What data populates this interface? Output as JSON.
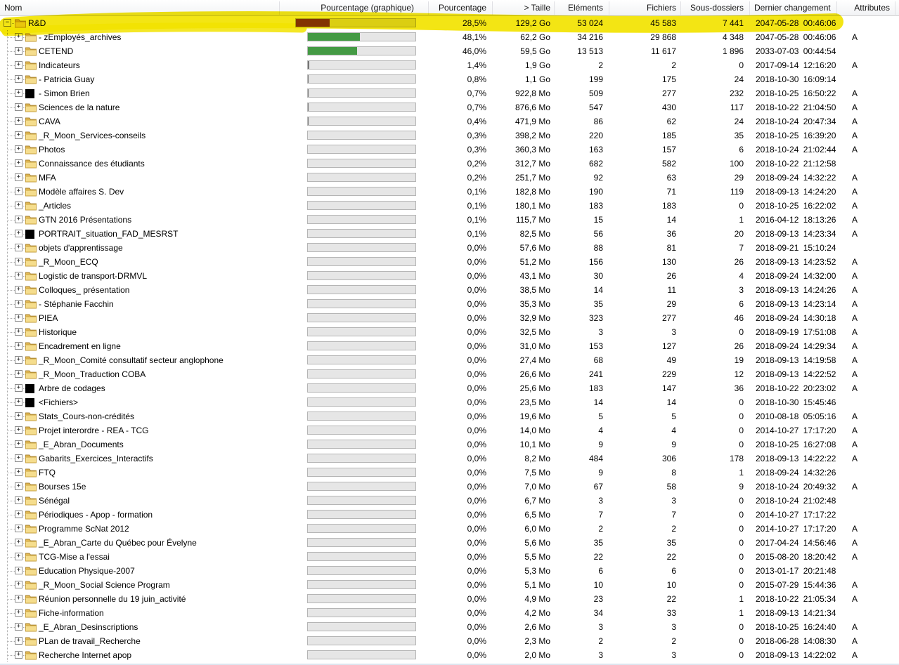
{
  "colors": {
    "highlight": "#f2e300",
    "bar_green": "#449a44",
    "bar_brown": "#8a3a0e",
    "bar_background": "#e6e6e6",
    "bar_border": "#b5b5b5",
    "bar_sliver": "#757575"
  },
  "columns": {
    "nom": "Nom",
    "graph": "Pourcentage (graphique)",
    "pct": "Pourcentage",
    "size": "> Taille",
    "elements": "Eléments",
    "files": "Fichiers",
    "subdirs": "Sous-dossiers",
    "changed": "Dernier changement",
    "attributes": "Attributes"
  },
  "rows": [
    {
      "name": "R&D",
      "level": 0,
      "icon": "folder",
      "expand": "minus",
      "highlight": true,
      "bar": "brown",
      "pct": "28,5%",
      "pct_value": 28.5,
      "size": "129,2 Go",
      "elements": "53 024",
      "files": "45 583",
      "subdirs": "7 441",
      "changed": "2047-05-28 00:46:06",
      "attr": ""
    },
    {
      "name": "- zEmployés_archives",
      "level": 1,
      "icon": "folder",
      "expand": "plus",
      "highlight": false,
      "bar": "green",
      "pct": "48,1%",
      "pct_value": 48.1,
      "size": "62,2 Go",
      "elements": "34 216",
      "files": "29 868",
      "subdirs": "4 348",
      "changed": "2047-05-28 00:46:06",
      "attr": "A"
    },
    {
      "name": "CETEND",
      "level": 1,
      "icon": "folder",
      "expand": "plus",
      "highlight": false,
      "bar": "green",
      "pct": "46,0%",
      "pct_value": 46.0,
      "size": "59,5 Go",
      "elements": "13 513",
      "files": "11 617",
      "subdirs": "1 896",
      "changed": "2033-07-03 00:44:54",
      "attr": ""
    },
    {
      "name": "Indicateurs",
      "level": 1,
      "icon": "folder",
      "expand": "plus",
      "highlight": false,
      "bar": "gray",
      "pct": "1,4%",
      "pct_value": 1.4,
      "size": "1,9 Go",
      "elements": "2",
      "files": "2",
      "subdirs": "0",
      "changed": "2017-09-14 12:16:20",
      "attr": "A"
    },
    {
      "name": "- Patricia Guay",
      "level": 1,
      "icon": "folder",
      "expand": "plus",
      "highlight": false,
      "bar": "gray",
      "pct": "0,8%",
      "pct_value": 0.8,
      "size": "1,1 Go",
      "elements": "199",
      "files": "175",
      "subdirs": "24",
      "changed": "2018-10-30 16:09:14",
      "attr": ""
    },
    {
      "name": "- Simon Brien",
      "level": 1,
      "icon": "black",
      "expand": "plus",
      "highlight": false,
      "bar": "gray",
      "pct": "0,7%",
      "pct_value": 0.7,
      "size": "922,8 Mo",
      "elements": "509",
      "files": "277",
      "subdirs": "232",
      "changed": "2018-10-25 16:50:22",
      "attr": "A"
    },
    {
      "name": "Sciences de la nature",
      "level": 1,
      "icon": "folder",
      "expand": "plus",
      "highlight": false,
      "bar": "gray",
      "pct": "0,7%",
      "pct_value": 0.7,
      "size": "876,6 Mo",
      "elements": "547",
      "files": "430",
      "subdirs": "117",
      "changed": "2018-10-22 21:04:50",
      "attr": "A"
    },
    {
      "name": "CAVA",
      "level": 1,
      "icon": "folder",
      "expand": "plus",
      "highlight": false,
      "bar": "gray",
      "pct": "0,4%",
      "pct_value": 0.4,
      "size": "471,9 Mo",
      "elements": "86",
      "files": "62",
      "subdirs": "24",
      "changed": "2018-10-24 20:47:34",
      "attr": "A"
    },
    {
      "name": "_R_Moon_Services-conseils",
      "level": 1,
      "icon": "folder",
      "expand": "plus",
      "highlight": false,
      "bar": "gray",
      "pct": "0,3%",
      "pct_value": 0.3,
      "size": "398,2 Mo",
      "elements": "220",
      "files": "185",
      "subdirs": "35",
      "changed": "2018-10-25 16:39:20",
      "attr": "A"
    },
    {
      "name": "Photos",
      "level": 1,
      "icon": "folder",
      "expand": "plus",
      "highlight": false,
      "bar": "gray",
      "pct": "0,3%",
      "pct_value": 0.3,
      "size": "360,3 Mo",
      "elements": "163",
      "files": "157",
      "subdirs": "6",
      "changed": "2018-10-24 21:02:44",
      "attr": "A"
    },
    {
      "name": "Connaissance des étudiants",
      "level": 1,
      "icon": "folder",
      "expand": "plus",
      "highlight": false,
      "bar": "gray",
      "pct": "0,2%",
      "pct_value": 0.2,
      "size": "312,7 Mo",
      "elements": "682",
      "files": "582",
      "subdirs": "100",
      "changed": "2018-10-22 21:12:58",
      "attr": ""
    },
    {
      "name": "MFA",
      "level": 1,
      "icon": "folder",
      "expand": "plus",
      "highlight": false,
      "bar": "gray",
      "pct": "0,2%",
      "pct_value": 0.2,
      "size": "251,7 Mo",
      "elements": "92",
      "files": "63",
      "subdirs": "29",
      "changed": "2018-09-24 14:32:22",
      "attr": "A"
    },
    {
      "name": "Modèle affaires S. Dev",
      "level": 1,
      "icon": "folder",
      "expand": "plus",
      "highlight": false,
      "bar": "gray",
      "pct": "0,1%",
      "pct_value": 0.1,
      "size": "182,8 Mo",
      "elements": "190",
      "files": "71",
      "subdirs": "119",
      "changed": "2018-09-13 14:24:20",
      "attr": "A"
    },
    {
      "name": "_Articles",
      "level": 1,
      "icon": "folder",
      "expand": "plus",
      "highlight": false,
      "bar": "gray",
      "pct": "0,1%",
      "pct_value": 0.1,
      "size": "180,1 Mo",
      "elements": "183",
      "files": "183",
      "subdirs": "0",
      "changed": "2018-10-25 16:22:02",
      "attr": "A"
    },
    {
      "name": "GTN 2016 Présentations",
      "level": 1,
      "icon": "folder",
      "expand": "plus",
      "highlight": false,
      "bar": "gray",
      "pct": "0,1%",
      "pct_value": 0.1,
      "size": "115,7 Mo",
      "elements": "15",
      "files": "14",
      "subdirs": "1",
      "changed": "2016-04-12 18:13:26",
      "attr": "A"
    },
    {
      "name": "PORTRAIT_situation_FAD_MESRST",
      "level": 1,
      "icon": "black",
      "expand": "plus",
      "highlight": false,
      "bar": "gray",
      "pct": "0,1%",
      "pct_value": 0.1,
      "size": "82,5 Mo",
      "elements": "56",
      "files": "36",
      "subdirs": "20",
      "changed": "2018-09-13 14:23:34",
      "attr": "A"
    },
    {
      "name": "objets d'apprentissage",
      "level": 1,
      "icon": "folder",
      "expand": "plus",
      "highlight": false,
      "bar": "gray",
      "pct": "0,0%",
      "pct_value": 0,
      "size": "57,6 Mo",
      "elements": "88",
      "files": "81",
      "subdirs": "7",
      "changed": "2018-09-21 15:10:24",
      "attr": ""
    },
    {
      "name": "_R_Moon_ECQ",
      "level": 1,
      "icon": "folder",
      "expand": "plus",
      "highlight": false,
      "bar": "gray",
      "pct": "0,0%",
      "pct_value": 0,
      "size": "51,2 Mo",
      "elements": "156",
      "files": "130",
      "subdirs": "26",
      "changed": "2018-09-13 14:23:52",
      "attr": "A"
    },
    {
      "name": "Logistic de transport-DRMVL",
      "level": 1,
      "icon": "folder",
      "expand": "plus",
      "highlight": false,
      "bar": "gray",
      "pct": "0,0%",
      "pct_value": 0,
      "size": "43,1 Mo",
      "elements": "30",
      "files": "26",
      "subdirs": "4",
      "changed": "2018-09-24 14:32:00",
      "attr": "A"
    },
    {
      "name": "Colloques_ présentation",
      "level": 1,
      "icon": "folder",
      "expand": "plus",
      "highlight": false,
      "bar": "gray",
      "pct": "0,0%",
      "pct_value": 0,
      "size": "38,5 Mo",
      "elements": "14",
      "files": "11",
      "subdirs": "3",
      "changed": "2018-09-13 14:24:26",
      "attr": "A"
    },
    {
      "name": "- Stéphanie Facchin",
      "level": 1,
      "icon": "folder",
      "expand": "plus",
      "highlight": false,
      "bar": "gray",
      "pct": "0,0%",
      "pct_value": 0,
      "size": "35,3 Mo",
      "elements": "35",
      "files": "29",
      "subdirs": "6",
      "changed": "2018-09-13 14:23:14",
      "attr": "A"
    },
    {
      "name": "PIEA",
      "level": 1,
      "icon": "folder",
      "expand": "plus",
      "highlight": false,
      "bar": "gray",
      "pct": "0,0%",
      "pct_value": 0,
      "size": "32,9 Mo",
      "elements": "323",
      "files": "277",
      "subdirs": "46",
      "changed": "2018-09-24 14:30:18",
      "attr": "A"
    },
    {
      "name": "Historique",
      "level": 1,
      "icon": "folder",
      "expand": "plus",
      "highlight": false,
      "bar": "gray",
      "pct": "0,0%",
      "pct_value": 0,
      "size": "32,5 Mo",
      "elements": "3",
      "files": "3",
      "subdirs": "0",
      "changed": "2018-09-19 17:51:08",
      "attr": "A"
    },
    {
      "name": "Encadrement en ligne",
      "level": 1,
      "icon": "folder",
      "expand": "plus",
      "highlight": false,
      "bar": "gray",
      "pct": "0,0%",
      "pct_value": 0,
      "size": "31,0 Mo",
      "elements": "153",
      "files": "127",
      "subdirs": "26",
      "changed": "2018-09-24 14:29:34",
      "attr": "A"
    },
    {
      "name": "_R_Moon_Comité consultatif secteur anglophone",
      "level": 1,
      "icon": "folder",
      "expand": "plus",
      "highlight": false,
      "bar": "gray",
      "pct": "0,0%",
      "pct_value": 0,
      "size": "27,4 Mo",
      "elements": "68",
      "files": "49",
      "subdirs": "19",
      "changed": "2018-09-13 14:19:58",
      "attr": "A"
    },
    {
      "name": "_R_Moon_Traduction COBA",
      "level": 1,
      "icon": "folder",
      "expand": "plus",
      "highlight": false,
      "bar": "gray",
      "pct": "0,0%",
      "pct_value": 0,
      "size": "26,6 Mo",
      "elements": "241",
      "files": "229",
      "subdirs": "12",
      "changed": "2018-09-13 14:22:52",
      "attr": "A"
    },
    {
      "name": "Arbre de codages",
      "level": 1,
      "icon": "black",
      "expand": "plus",
      "highlight": false,
      "bar": "gray",
      "pct": "0,0%",
      "pct_value": 0,
      "size": "25,6 Mo",
      "elements": "183",
      "files": "147",
      "subdirs": "36",
      "changed": "2018-10-22 20:23:02",
      "attr": "A"
    },
    {
      "name": "<Fichiers>",
      "level": 1,
      "icon": "black",
      "expand": "plus",
      "highlight": false,
      "bar": "gray",
      "pct": "0,0%",
      "pct_value": 0,
      "size": "23,5 Mo",
      "elements": "14",
      "files": "14",
      "subdirs": "0",
      "changed": "2018-10-30 15:45:46",
      "attr": ""
    },
    {
      "name": "Stats_Cours-non-crédités",
      "level": 1,
      "icon": "folder",
      "expand": "plus",
      "highlight": false,
      "bar": "gray",
      "pct": "0,0%",
      "pct_value": 0,
      "size": "19,6 Mo",
      "elements": "5",
      "files": "5",
      "subdirs": "0",
      "changed": "2010-08-18 05:05:16",
      "attr": "A"
    },
    {
      "name": "Projet interordre - REA - TCG",
      "level": 1,
      "icon": "folder",
      "expand": "plus",
      "highlight": false,
      "bar": "gray",
      "pct": "0,0%",
      "pct_value": 0,
      "size": "14,0 Mo",
      "elements": "4",
      "files": "4",
      "subdirs": "0",
      "changed": "2014-10-27 17:17:20",
      "attr": "A"
    },
    {
      "name": "_E_Abran_Documents",
      "level": 1,
      "icon": "folder",
      "expand": "plus",
      "highlight": false,
      "bar": "gray",
      "pct": "0,0%",
      "pct_value": 0,
      "size": "10,1 Mo",
      "elements": "9",
      "files": "9",
      "subdirs": "0",
      "changed": "2018-10-25 16:27:08",
      "attr": "A"
    },
    {
      "name": "Gabarits_Exercices_Interactifs",
      "level": 1,
      "icon": "folder",
      "expand": "plus",
      "highlight": false,
      "bar": "gray",
      "pct": "0,0%",
      "pct_value": 0,
      "size": "8,2 Mo",
      "elements": "484",
      "files": "306",
      "subdirs": "178",
      "changed": "2018-09-13 14:22:22",
      "attr": "A"
    },
    {
      "name": "FTQ",
      "level": 1,
      "icon": "folder",
      "expand": "plus",
      "highlight": false,
      "bar": "gray",
      "pct": "0,0%",
      "pct_value": 0,
      "size": "7,5 Mo",
      "elements": "9",
      "files": "8",
      "subdirs": "1",
      "changed": "2018-09-24 14:32:26",
      "attr": ""
    },
    {
      "name": "Bourses 15e",
      "level": 1,
      "icon": "folder",
      "expand": "plus",
      "highlight": false,
      "bar": "gray",
      "pct": "0,0%",
      "pct_value": 0,
      "size": "7,0 Mo",
      "elements": "67",
      "files": "58",
      "subdirs": "9",
      "changed": "2018-10-24 20:49:32",
      "attr": "A"
    },
    {
      "name": "Sénégal",
      "level": 1,
      "icon": "folder",
      "expand": "plus",
      "highlight": false,
      "bar": "gray",
      "pct": "0,0%",
      "pct_value": 0,
      "size": "6,7 Mo",
      "elements": "3",
      "files": "3",
      "subdirs": "0",
      "changed": "2018-10-24 21:02:48",
      "attr": ""
    },
    {
      "name": "Périodiques - Apop - formation",
      "level": 1,
      "icon": "folder",
      "expand": "plus",
      "highlight": false,
      "bar": "gray",
      "pct": "0,0%",
      "pct_value": 0,
      "size": "6,5 Mo",
      "elements": "7",
      "files": "7",
      "subdirs": "0",
      "changed": "2014-10-27 17:17:22",
      "attr": ""
    },
    {
      "name": "Programme ScNat 2012",
      "level": 1,
      "icon": "folder",
      "expand": "plus",
      "highlight": false,
      "bar": "gray",
      "pct": "0,0%",
      "pct_value": 0,
      "size": "6,0 Mo",
      "elements": "2",
      "files": "2",
      "subdirs": "0",
      "changed": "2014-10-27 17:17:20",
      "attr": "A"
    },
    {
      "name": "_E_Abran_Carte du Québec pour Évelyne",
      "level": 1,
      "icon": "folder",
      "expand": "plus",
      "highlight": false,
      "bar": "gray",
      "pct": "0,0%",
      "pct_value": 0,
      "size": "5,6 Mo",
      "elements": "35",
      "files": "35",
      "subdirs": "0",
      "changed": "2017-04-24 14:56:46",
      "attr": "A"
    },
    {
      "name": "TCG-Mise a l'essai",
      "level": 1,
      "icon": "folder",
      "expand": "plus",
      "highlight": false,
      "bar": "gray",
      "pct": "0,0%",
      "pct_value": 0,
      "size": "5,5 Mo",
      "elements": "22",
      "files": "22",
      "subdirs": "0",
      "changed": "2015-08-20 18:20:42",
      "attr": "A"
    },
    {
      "name": "Education Physique-2007",
      "level": 1,
      "icon": "folder",
      "expand": "plus",
      "highlight": false,
      "bar": "gray",
      "pct": "0,0%",
      "pct_value": 0,
      "size": "5,3 Mo",
      "elements": "6",
      "files": "6",
      "subdirs": "0",
      "changed": "2013-01-17 20:21:48",
      "attr": ""
    },
    {
      "name": "_R_Moon_Social Science Program",
      "level": 1,
      "icon": "folder",
      "expand": "plus",
      "highlight": false,
      "bar": "gray",
      "pct": "0,0%",
      "pct_value": 0,
      "size": "5,1 Mo",
      "elements": "10",
      "files": "10",
      "subdirs": "0",
      "changed": "2015-07-29 15:44:36",
      "attr": "A"
    },
    {
      "name": "Réunion personnelle du 19 juin_activité",
      "level": 1,
      "icon": "folder",
      "expand": "plus",
      "highlight": false,
      "bar": "gray",
      "pct": "0,0%",
      "pct_value": 0,
      "size": "4,9 Mo",
      "elements": "23",
      "files": "22",
      "subdirs": "1",
      "changed": "2018-10-22 21:05:34",
      "attr": "A"
    },
    {
      "name": "Fiche-information",
      "level": 1,
      "icon": "folder",
      "expand": "plus",
      "highlight": false,
      "bar": "gray",
      "pct": "0,0%",
      "pct_value": 0,
      "size": "4,2 Mo",
      "elements": "34",
      "files": "33",
      "subdirs": "1",
      "changed": "2018-09-13 14:21:34",
      "attr": ""
    },
    {
      "name": "_E_Abran_Desinscriptions",
      "level": 1,
      "icon": "folder",
      "expand": "plus",
      "highlight": false,
      "bar": "gray",
      "pct": "0,0%",
      "pct_value": 0,
      "size": "2,6 Mo",
      "elements": "3",
      "files": "3",
      "subdirs": "0",
      "changed": "2018-10-25 16:24:40",
      "attr": "A"
    },
    {
      "name": "PLan de travail_Recherche",
      "level": 1,
      "icon": "folder",
      "expand": "plus",
      "highlight": false,
      "bar": "gray",
      "pct": "0,0%",
      "pct_value": 0,
      "size": "2,3 Mo",
      "elements": "2",
      "files": "2",
      "subdirs": "0",
      "changed": "2018-06-28 14:08:30",
      "attr": "A"
    },
    {
      "name": "Recherche Internet apop",
      "level": 1,
      "icon": "folder",
      "expand": "plus",
      "highlight": false,
      "bar": "gray",
      "pct": "0,0%",
      "pct_value": 0,
      "size": "2,0 Mo",
      "elements": "3",
      "files": "3",
      "subdirs": "0",
      "changed": "2018-09-13 14:22:02",
      "attr": "A"
    }
  ]
}
